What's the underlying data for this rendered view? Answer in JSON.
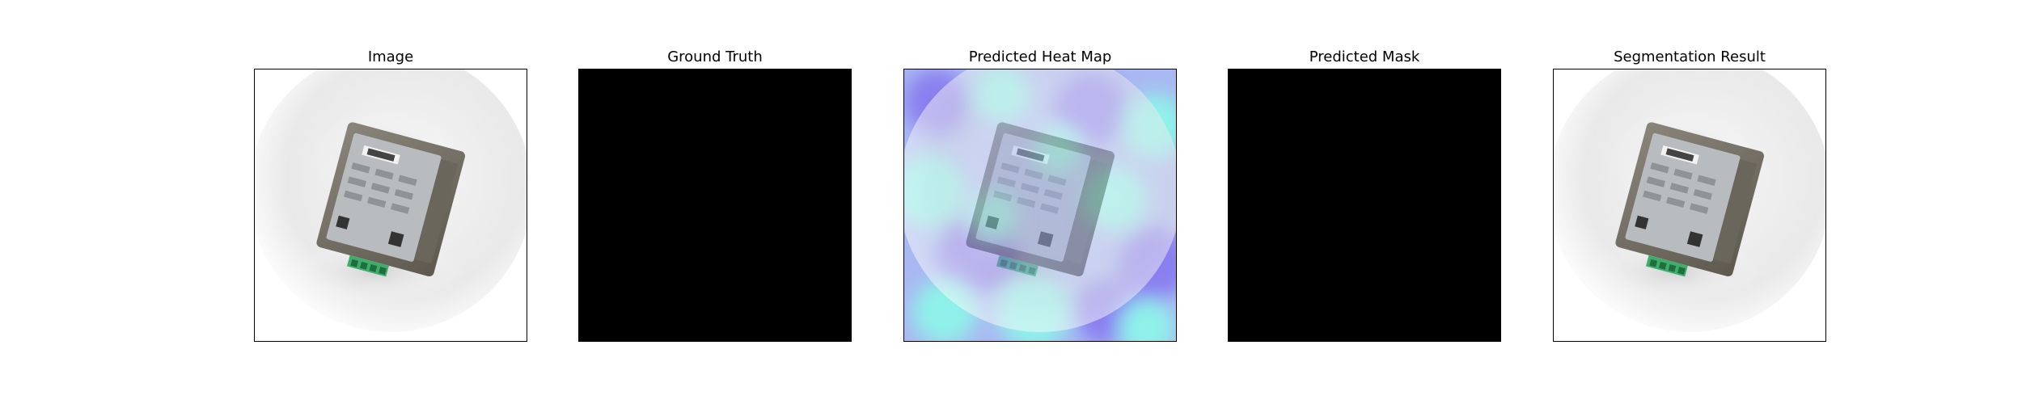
{
  "panels": [
    {
      "title": "Image"
    },
    {
      "title": "Ground Truth"
    },
    {
      "title": "Predicted Heat Map"
    },
    {
      "title": "Predicted Mask"
    },
    {
      "title": "Segmentation Result"
    }
  ],
  "colors": {
    "mask_background": "#000000",
    "heatmap_low": "#8a7ff0",
    "heatmap_high": "#8ff2ea",
    "device_body": "#7a7468",
    "connector": "#3fae6a"
  },
  "icons": {
    "device": "industrial-device-photo"
  }
}
